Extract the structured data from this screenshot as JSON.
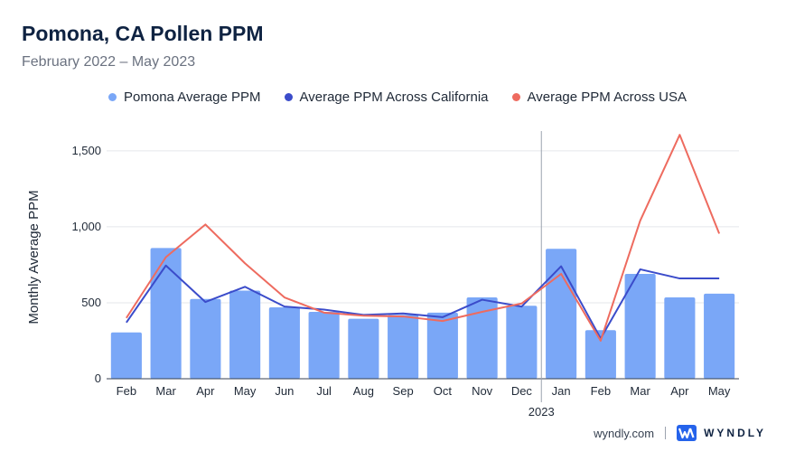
{
  "title": "Pomona, CA Pollen PPM",
  "subtitle": "February 2022 – May 2023",
  "legend": [
    {
      "label": "Pomona Average PPM",
      "color": "#7aa7f7"
    },
    {
      "label": "Average PPM Across California",
      "color": "#3b4cca"
    },
    {
      "label": "Average PPM Across USA",
      "color": "#ee6b5f"
    }
  ],
  "footer": {
    "site": "wyndly.com",
    "brand": "WYNDLY"
  },
  "chart_data": {
    "type": "bar",
    "title": "Pomona, CA Pollen PPM",
    "subtitle": "February 2022 – May 2023",
    "ylabel": "Monthly Average PPM",
    "xlabel": "",
    "ylim": [
      0,
      1600
    ],
    "yticks": [
      0,
      500,
      1000,
      1500
    ],
    "ytick_labels": [
      "0",
      "500",
      "1,000",
      "1,500"
    ],
    "grid": true,
    "legend_position": "top-center",
    "year_marker": {
      "label": "2023",
      "before_index": 11
    },
    "categories": [
      "Feb",
      "Mar",
      "Apr",
      "May",
      "Jun",
      "Jul",
      "Aug",
      "Sep",
      "Oct",
      "Nov",
      "Dec",
      "Jan",
      "Feb",
      "Mar",
      "Apr",
      "May"
    ],
    "series": [
      {
        "name": "Pomona Average PPM",
        "type": "bar",
        "color": "#7aa7f7",
        "values": [
          305,
          860,
          525,
          580,
          470,
          440,
          395,
          420,
          435,
          535,
          480,
          855,
          320,
          690,
          535,
          560
        ]
      },
      {
        "name": "Average PPM Across California",
        "type": "line",
        "color": "#3b4cca",
        "values": [
          370,
          745,
          505,
          605,
          475,
          455,
          420,
          430,
          405,
          520,
          475,
          740,
          265,
          720,
          660,
          660
        ]
      },
      {
        "name": "Average PPM Across USA",
        "type": "line",
        "color": "#ee6b5f",
        "values": [
          400,
          800,
          1015,
          760,
          535,
          435,
          415,
          410,
          380,
          440,
          495,
          690,
          250,
          1040,
          1605,
          955
        ]
      }
    ]
  }
}
